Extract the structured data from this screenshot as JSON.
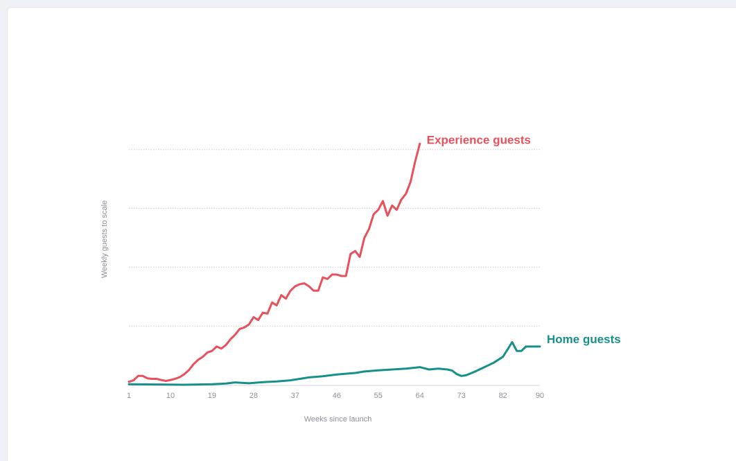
{
  "chart_data": {
    "type": "line",
    "title": "",
    "xlabel": "Weeks since launch",
    "ylabel": "Weekly guests to scale",
    "xlim": [
      1,
      90
    ],
    "ylim": [
      0,
      100
    ],
    "x_ticks": [
      1,
      10,
      19,
      28,
      37,
      46,
      55,
      64,
      73,
      82,
      90
    ],
    "y_gridlines": [
      20,
      40,
      60,
      80
    ],
    "grid": true,
    "legend": "direct labels at line ends",
    "series": [
      {
        "name": "Experience guests",
        "color": "#e8505b",
        "x": [
          1,
          2,
          3,
          4,
          5,
          6,
          7,
          8,
          9,
          10,
          11,
          12,
          13,
          14,
          15,
          16,
          17,
          18,
          19,
          20,
          21,
          22,
          23,
          24,
          25,
          26,
          27,
          28,
          29,
          30,
          31,
          32,
          33,
          34,
          35,
          36,
          37,
          38,
          39,
          40,
          41,
          42,
          43,
          44,
          45,
          46,
          47,
          48,
          49,
          50,
          51,
          52,
          53,
          54,
          55,
          56,
          57,
          58,
          59,
          60,
          61,
          62,
          63,
          64
        ],
        "y": [
          1.0,
          1.5,
          3.0,
          3.0,
          2.2,
          2.0,
          2.0,
          1.6,
          1.3,
          1.6,
          2.0,
          2.6,
          3.6,
          5.0,
          7.0,
          8.5,
          9.5,
          11.0,
          11.5,
          13.0,
          12.3,
          13.5,
          15.5,
          17.0,
          19.0,
          19.5,
          20.5,
          23.0,
          22.0,
          24.5,
          24.2,
          28.0,
          27.0,
          30.5,
          29.3,
          32.0,
          33.5,
          34.2,
          34.5,
          33.5,
          32.0,
          32.0,
          36.5,
          36.0,
          37.5,
          37.5,
          37.0,
          37.0,
          44.5,
          45.5,
          43.5,
          50.0,
          53.0,
          58.0,
          59.5,
          62.5,
          57.5,
          61.0,
          59.5,
          63.0,
          65.0,
          69.0,
          76.0,
          82.0
        ]
      },
      {
        "name": "Home guests",
        "color": "#178f8a",
        "x": [
          1,
          7,
          13,
          19,
          22,
          24,
          27,
          30,
          33,
          36,
          38,
          40,
          43,
          46,
          50,
          52,
          55,
          58,
          61,
          63,
          64,
          66,
          68,
          70,
          71,
          72,
          73,
          74,
          76,
          78,
          80,
          82,
          83,
          84,
          85,
          86,
          87,
          88,
          89,
          90
        ],
        "y": [
          0.2,
          0.1,
          0.0,
          0.2,
          0.4,
          0.8,
          0.5,
          0.9,
          1.1,
          1.5,
          2.0,
          2.5,
          2.9,
          3.5,
          4.0,
          4.5,
          4.9,
          5.2,
          5.5,
          5.8,
          6.0,
          5.2,
          5.5,
          5.2,
          4.8,
          3.6,
          3.0,
          3.2,
          4.5,
          6.0,
          7.5,
          9.5,
          12.0,
          14.5,
          11.5,
          11.5,
          13.0,
          13.0,
          13.0,
          13.0
        ]
      }
    ]
  }
}
